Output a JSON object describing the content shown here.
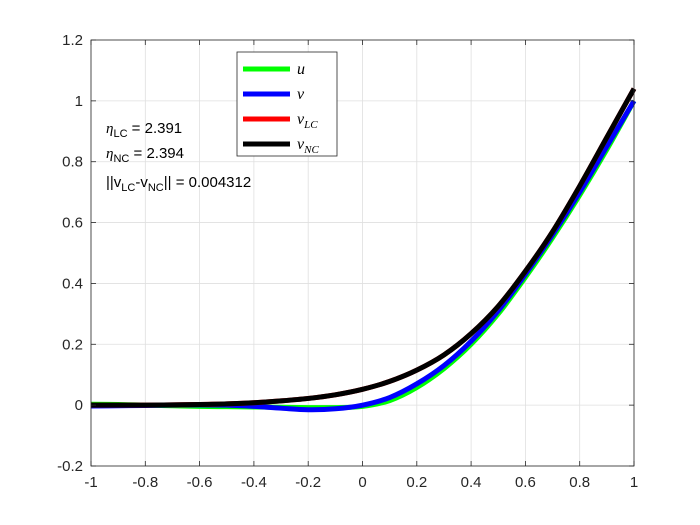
{
  "chart_data": {
    "type": "line",
    "title": "",
    "xlabel": "",
    "ylabel": "",
    "xlim": [
      -1,
      1
    ],
    "ylim": [
      -0.2,
      1.2
    ],
    "xticks": [
      "-1",
      "-0.8",
      "-0.6",
      "-0.4",
      "-0.2",
      "0",
      "0.2",
      "0.4",
      "0.6",
      "0.8",
      "1"
    ],
    "yticks": [
      "-0.2",
      "0",
      "0.2",
      "0.4",
      "0.6",
      "0.8",
      "1",
      "1.2"
    ],
    "grid": true,
    "legend_position": "top-center",
    "series": [
      {
        "name": "u",
        "color": "#00ff00",
        "x": [
          -1,
          -0.9,
          -0.8,
          -0.7,
          -0.6,
          -0.5,
          -0.4,
          -0.3,
          -0.2,
          -0.1,
          0,
          0.1,
          0.2,
          0.3,
          0.4,
          0.5,
          0.6,
          0.7,
          0.8,
          0.9,
          1
        ],
        "y": [
          0.003,
          0.002,
          0.0,
          -0.002,
          -0.004,
          -0.005,
          -0.006,
          -0.007,
          -0.008,
          -0.008,
          -0.004,
          0.015,
          0.058,
          0.12,
          0.2,
          0.3,
          0.42,
          0.55,
          0.69,
          0.84,
          1.0
        ]
      },
      {
        "name": "v",
        "color": "#0000ff",
        "x": [
          -1,
          -0.9,
          -0.8,
          -0.7,
          -0.6,
          -0.5,
          -0.4,
          -0.3,
          -0.2,
          -0.1,
          0,
          0.1,
          0.2,
          0.3,
          0.4,
          0.5,
          0.6,
          0.7,
          0.8,
          0.9,
          1
        ],
        "y": [
          -0.003,
          -0.002,
          -0.001,
          0.0,
          0.001,
          0.0,
          -0.004,
          -0.01,
          -0.015,
          -0.012,
          0.0,
          0.025,
          0.07,
          0.13,
          0.21,
          0.31,
          0.43,
          0.56,
          0.7,
          0.85,
          1.0
        ]
      },
      {
        "name": "v_LC",
        "color": "#ff0000",
        "x": [
          -1,
          -0.9,
          -0.8,
          -0.7,
          -0.6,
          -0.5,
          -0.4,
          -0.3,
          -0.2,
          -0.1,
          0,
          0.1,
          0.2,
          0.3,
          0.4,
          0.5,
          0.6,
          0.7,
          0.8,
          0.9,
          1
        ],
        "y": [
          0.0,
          0.0,
          0.0,
          0.001,
          0.002,
          0.004,
          0.008,
          0.014,
          0.022,
          0.034,
          0.052,
          0.078,
          0.115,
          0.165,
          0.235,
          0.325,
          0.44,
          0.57,
          0.72,
          0.88,
          1.04
        ]
      },
      {
        "name": "v_NC",
        "color": "#000000",
        "x": [
          -1,
          -0.9,
          -0.8,
          -0.7,
          -0.6,
          -0.5,
          -0.4,
          -0.3,
          -0.2,
          -0.1,
          0,
          0.1,
          0.2,
          0.3,
          0.4,
          0.5,
          0.6,
          0.7,
          0.8,
          0.9,
          1
        ],
        "y": [
          0.0,
          0.0,
          0.0,
          0.001,
          0.002,
          0.004,
          0.008,
          0.014,
          0.022,
          0.034,
          0.052,
          0.078,
          0.115,
          0.165,
          0.235,
          0.325,
          0.44,
          0.57,
          0.72,
          0.88,
          1.04
        ]
      }
    ],
    "annotations": {
      "eta_lc": {
        "symbol": "η",
        "sub": "LC",
        "value": " = 2.391"
      },
      "eta_nc": {
        "symbol": "η",
        "sub": "NC",
        "value": " = 2.394"
      },
      "norm": {
        "pre": "||v",
        "sub1": "LC",
        "mid": "-v",
        "sub2": "NC",
        "post": "|| = 0.004312"
      }
    },
    "legend": {
      "entries": [
        {
          "base": "u",
          "sub": ""
        },
        {
          "base": "v",
          "sub": ""
        },
        {
          "base": "v",
          "sub": "LC"
        },
        {
          "base": "v",
          "sub": "NC"
        }
      ]
    }
  }
}
